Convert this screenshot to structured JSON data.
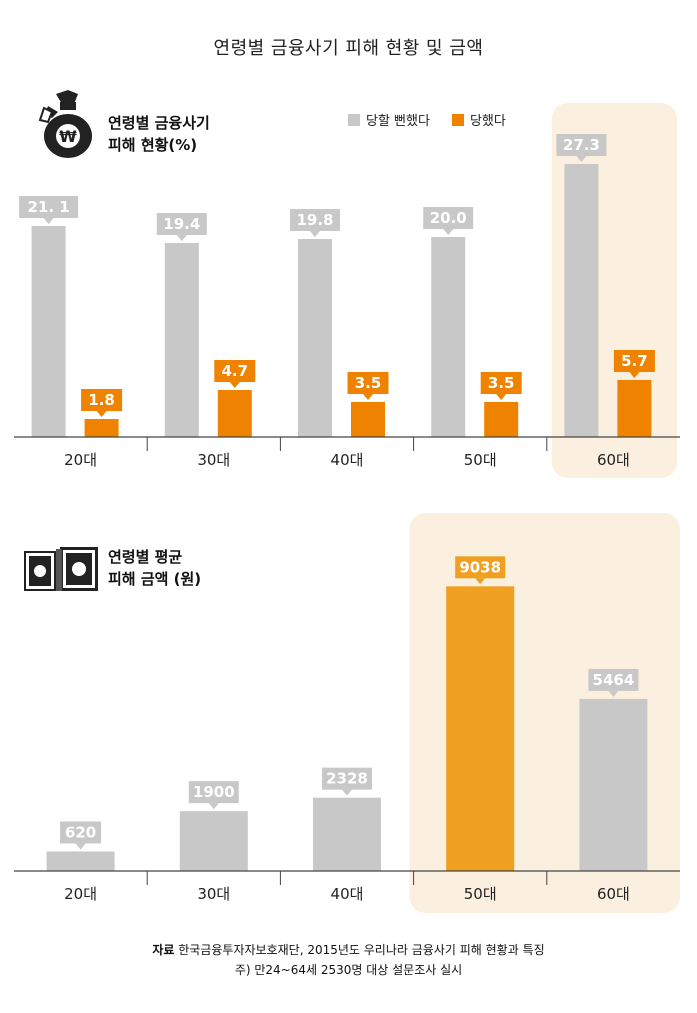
{
  "title": "연령별 금융사기 피해 현황 및 금액",
  "colors": {
    "gray": "#c8c8c8",
    "orange": "#ef8300",
    "gold": "#f0a020",
    "highlight": "#fbefdf",
    "axis": "#444444"
  },
  "icons": [
    "money-bag-icon",
    "cash-bundle-icon"
  ],
  "chart_data": [
    {
      "type": "bar",
      "title": "연령별 금융사기\n피해 현황(%)",
      "title_lines": [
        "연령별 금융사기",
        "피해 현황(%)"
      ],
      "categories": [
        "20대",
        "30대",
        "40대",
        "50대",
        "60대"
      ],
      "series": [
        {
          "name": "당할 뻔했다",
          "values": [
            21.1,
            19.4,
            19.8,
            20.0,
            27.3
          ],
          "labels": [
            "21. 1",
            "19.4",
            "19.8",
            "20.0",
            "27.3"
          ],
          "color": "#c8c8c8"
        },
        {
          "name": "당했다",
          "values": [
            1.8,
            4.7,
            3.5,
            3.5,
            5.7
          ],
          "labels": [
            "1.8",
            "4.7",
            "3.5",
            "3.5",
            "5.7"
          ],
          "color": "#ef8300"
        }
      ],
      "highlight_category": "60대",
      "legend_position": "top-right",
      "ylim": [
        0,
        30
      ],
      "grid": false
    },
    {
      "type": "bar",
      "title": "연령별 평균\n피해 금액 (원)",
      "title_lines": [
        "연령별 평균",
        "피해 금액 (원)"
      ],
      "categories": [
        "20대",
        "30대",
        "40대",
        "50대",
        "60대"
      ],
      "values": [
        620,
        1900,
        2328,
        9038,
        5464
      ],
      "labels": [
        "620",
        "1900",
        "2328",
        "9038",
        "5464"
      ],
      "highlight_category": "50대",
      "ylim": [
        0,
        10000
      ],
      "grid": false
    }
  ],
  "source": {
    "label": "자료",
    "line1": "한국금융투자자보호재단, 2015년도 우리나라 금융사기 피해 현황과 특징",
    "line2": "주) 만24~64세 2530명 대상 설문조사 실시"
  }
}
